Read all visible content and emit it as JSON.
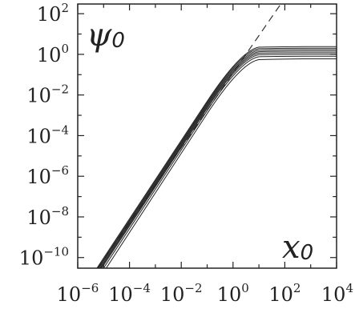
{
  "chart_data": {
    "type": "line",
    "title": "",
    "xlabel_var": "x",
    "xlabel_sub": "0",
    "ylabel_var": "ψ",
    "ylabel_sub": "0",
    "x_scale": "log",
    "y_scale": "log",
    "xlim": [
      1e-06,
      10000.0
    ],
    "ylim": [
      3e-11,
      300
    ],
    "x_ticks": [
      {
        "base": "10",
        "exp": "-6",
        "value": 1e-06
      },
      {
        "base": "10",
        "exp": "-4",
        "value": 0.0001
      },
      {
        "base": "10",
        "exp": "-2",
        "value": 0.01
      },
      {
        "base": "10",
        "exp": "0",
        "value": 1
      },
      {
        "base": "10",
        "exp": "2",
        "value": 100
      },
      {
        "base": "10",
        "exp": "4",
        "value": 10000
      }
    ],
    "y_ticks": [
      {
        "base": "10",
        "exp": "2",
        "value": 100
      },
      {
        "base": "10",
        "exp": "0",
        "value": 1
      },
      {
        "base": "10",
        "exp": "-2",
        "value": 0.01
      },
      {
        "base": "10",
        "exp": "-4",
        "value": 0.0001
      },
      {
        "base": "10",
        "exp": "-6",
        "value": 1e-06
      },
      {
        "base": "10",
        "exp": "-8",
        "value": 1e-08
      },
      {
        "base": "10",
        "exp": "-10",
        "value": 1e-10
      }
    ],
    "grid": false,
    "legend": "none",
    "dashed_reference": {
      "style": "dashed",
      "x": [
        6e-06,
        70
      ],
      "y": [
        3e-11,
        300
      ]
    },
    "series": [
      {
        "x": [
          5e-06,
          0.1,
          2,
          10,
          30,
          10000
        ],
        "y": [
          2.5e-11,
          0.0049,
          1.56,
          2.25,
          2.35,
          2.4
        ]
      },
      {
        "x": [
          5e-06,
          0.1,
          2,
          10,
          30,
          10000
        ],
        "y": [
          2.1e-11,
          0.0042,
          1.35,
          1.9,
          1.98,
          2.0
        ]
      },
      {
        "x": [
          5e-06,
          0.1,
          2,
          10,
          30,
          10000
        ],
        "y": [
          1.8e-11,
          0.0036,
          1.15,
          1.6,
          1.67,
          1.7
        ]
      },
      {
        "x": [
          5e-06,
          0.1,
          2,
          10,
          30,
          10000
        ],
        "y": [
          1.5e-11,
          0.0031,
          0.97,
          1.35,
          1.41,
          1.43
        ]
      },
      {
        "x": [
          5e-06,
          0.1,
          2,
          10,
          30,
          10000
        ],
        "y": [
          1.3e-11,
          0.0026,
          0.82,
          1.14,
          1.19,
          1.2
        ]
      },
      {
        "x": [
          5e-06,
          0.1,
          2,
          10,
          30,
          10000
        ],
        "y": [
          1.1e-11,
          0.0022,
          0.69,
          0.95,
          0.99,
          1.0
        ]
      },
      {
        "x": [
          5e-06,
          0.1,
          2,
          10,
          30,
          10000
        ],
        "y": [
          8e-12,
          0.0017,
          0.55,
          0.76,
          0.79,
          0.8
        ]
      },
      {
        "x": [
          5e-06,
          0.1,
          2,
          10,
          30,
          10000
        ],
        "y": [
          5e-12,
          0.0012,
          0.39,
          0.55,
          0.58,
          0.6
        ]
      }
    ]
  }
}
